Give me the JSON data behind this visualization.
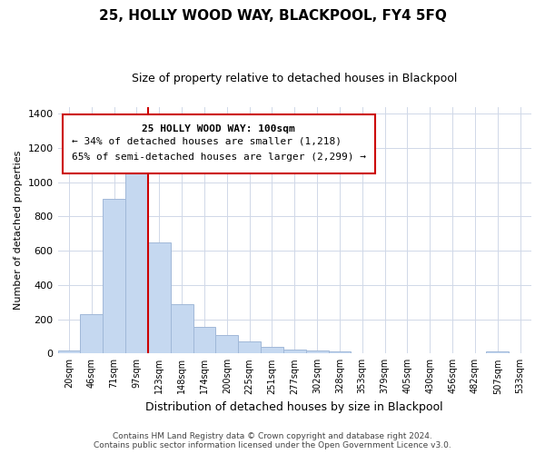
{
  "title": "25, HOLLY WOOD WAY, BLACKPOOL, FY4 5FQ",
  "subtitle": "Size of property relative to detached houses in Blackpool",
  "xlabel": "Distribution of detached houses by size in Blackpool",
  "ylabel": "Number of detached properties",
  "bar_color": "#c5d8f0",
  "bar_edge_color": "#a0b8d8",
  "background_color": "#ffffff",
  "grid_color": "#d0d8e8",
  "annotation_box_color": "#cc0000",
  "annotation_line_color": "#cc0000",
  "bin_labels": [
    "20sqm",
    "46sqm",
    "71sqm",
    "97sqm",
    "123sqm",
    "148sqm",
    "174sqm",
    "200sqm",
    "225sqm",
    "251sqm",
    "277sqm",
    "302sqm",
    "328sqm",
    "353sqm",
    "379sqm",
    "405sqm",
    "430sqm",
    "456sqm",
    "482sqm",
    "507sqm",
    "533sqm"
  ],
  "bar_values": [
    15,
    228,
    905,
    1072,
    651,
    289,
    157,
    107,
    68,
    38,
    22,
    18,
    14,
    0,
    0,
    0,
    0,
    0,
    0,
    10,
    0
  ],
  "ylim": [
    0,
    1440
  ],
  "yticks": [
    0,
    200,
    400,
    600,
    800,
    1000,
    1200,
    1400
  ],
  "property_line_x": 4.0,
  "annotation_text_line1": "25 HOLLY WOOD WAY: 100sqm",
  "annotation_text_line2": "← 34% of detached houses are smaller (1,218)",
  "annotation_text_line3": "65% of semi-detached houses are larger (2,299) →",
  "footer_line1": "Contains HM Land Registry data © Crown copyright and database right 2024.",
  "footer_line2": "Contains public sector information licensed under the Open Government Licence v3.0."
}
